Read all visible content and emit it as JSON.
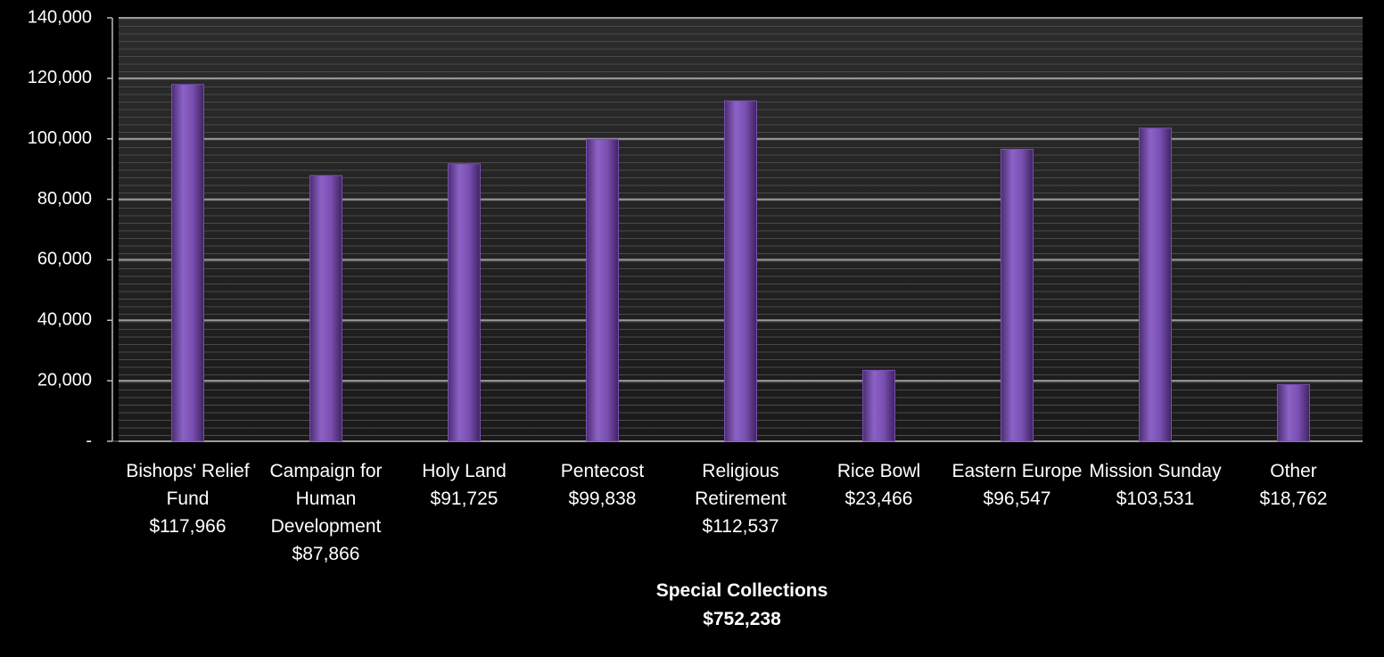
{
  "chart_data": {
    "type": "bar",
    "categories": [
      "Bishops' Relief Fund",
      "Campaign for Human Development",
      "Holy Land",
      "Pentecost",
      "Religious Retirement",
      "Rice Bowl",
      "Eastern Europe",
      "Mission Sunday",
      "Other"
    ],
    "values": [
      117966,
      87866,
      91725,
      99838,
      112537,
      23466,
      96547,
      103531,
      18762
    ],
    "value_labels": [
      "$117,966",
      "$87,866",
      "$91,725",
      "$99,838",
      "$112,537",
      "$23,466",
      "$96,547",
      "$103,531",
      "$18,762"
    ],
    "color": "#7a4fb2",
    "ylim": [
      0,
      140000
    ],
    "yticks": [
      {
        "value": 0,
        "label": "-"
      },
      {
        "value": 20000,
        "label": "20,000"
      },
      {
        "value": 40000,
        "label": "40,000"
      },
      {
        "value": 60000,
        "label": "60,000"
      },
      {
        "value": 80000,
        "label": "80,000"
      },
      {
        "value": 100000,
        "label": "100,000"
      },
      {
        "value": 120000,
        "label": "120,000"
      },
      {
        "value": 140000,
        "label": "140,000"
      }
    ],
    "grid": true,
    "xlabel": "Special Collections",
    "total_label": "$752,238"
  }
}
